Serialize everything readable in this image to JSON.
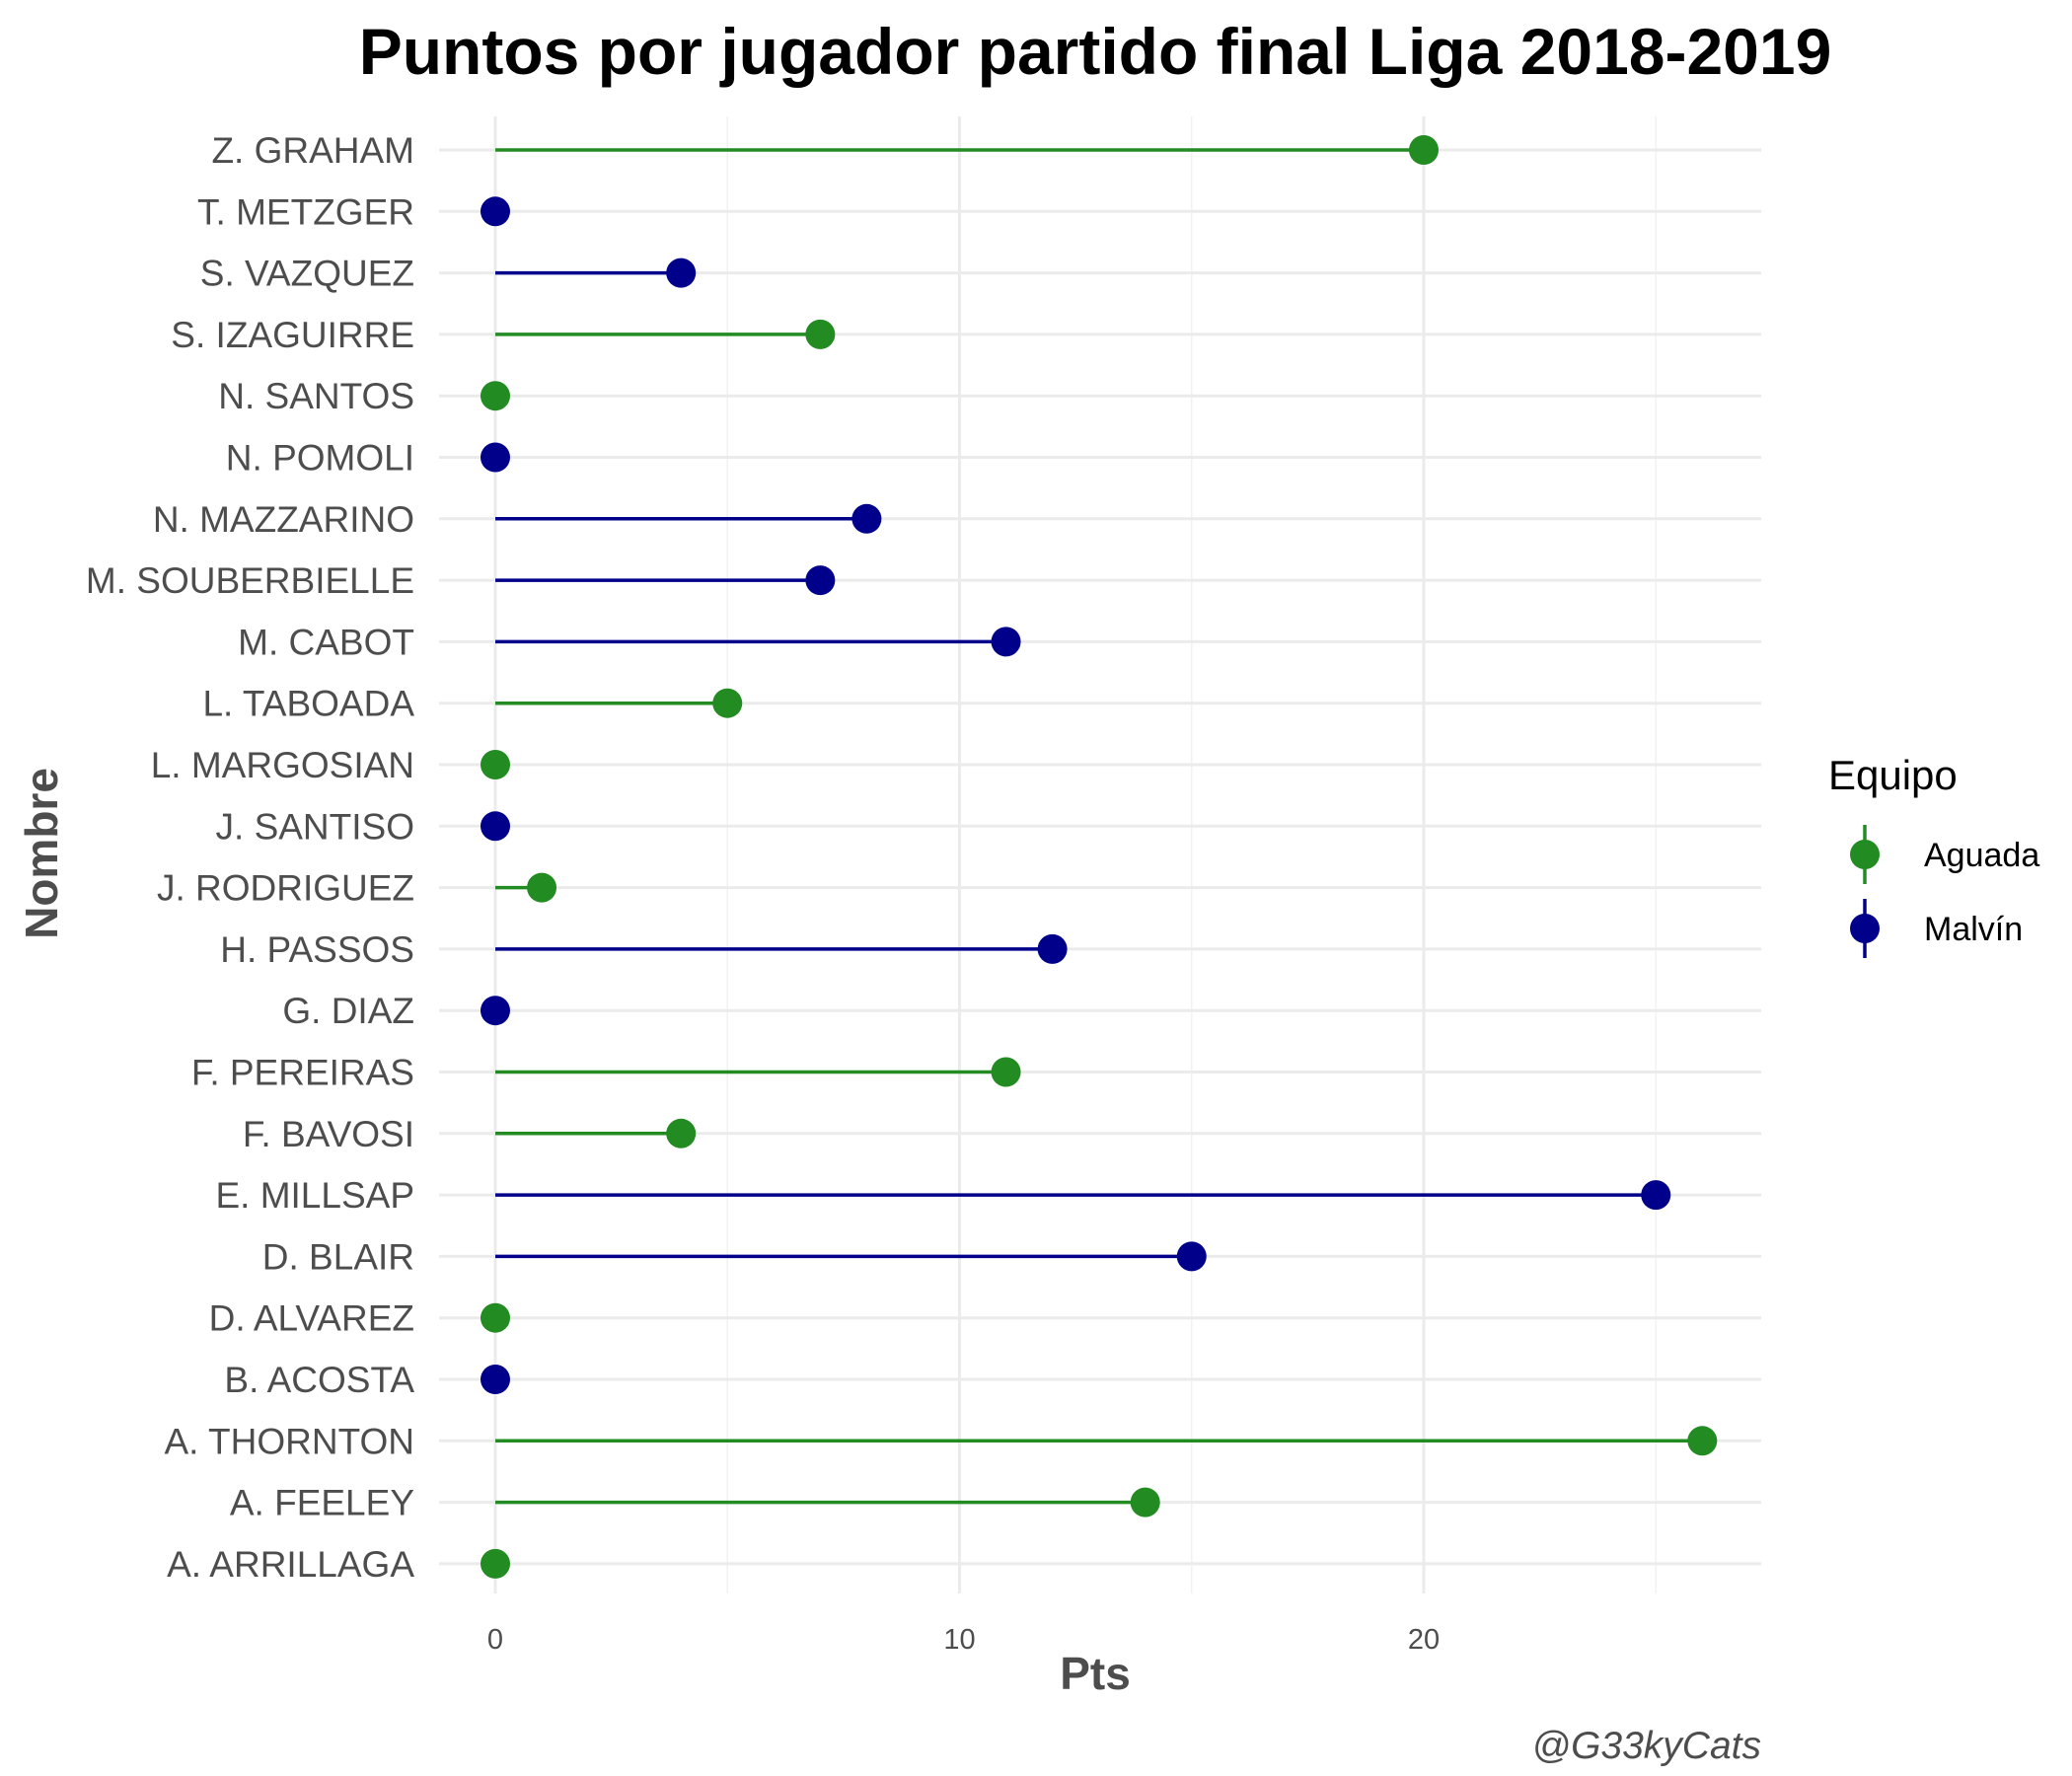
{
  "chart_data": {
    "type": "lollipop",
    "title": "Puntos por jugador partido final Liga 2018-2019",
    "xlabel": "Pts",
    "ylabel": "Nombre",
    "xlim": [
      -4.5,
      27.5
    ],
    "xticks": [
      0,
      10,
      20
    ],
    "grid": true,
    "caption": "@G33kyCats",
    "legend": {
      "title": "Equipo",
      "position": "right",
      "entries": [
        {
          "name": "Aguada",
          "color": "#228B22"
        },
        {
          "name": "Malvín",
          "color": "#00008B"
        }
      ]
    },
    "points": [
      {
        "name": "Z. GRAHAM",
        "team": "Aguada",
        "pts": 20
      },
      {
        "name": "T. METZGER",
        "team": "Malvín",
        "pts": 0
      },
      {
        "name": "S. VAZQUEZ",
        "team": "Malvín",
        "pts": 4
      },
      {
        "name": "S. IZAGUIRRE",
        "team": "Aguada",
        "pts": 7
      },
      {
        "name": "N. SANTOS",
        "team": "Aguada",
        "pts": 0
      },
      {
        "name": "N. POMOLI",
        "team": "Malvín",
        "pts": 0
      },
      {
        "name": "N. MAZZARINO",
        "team": "Malvín",
        "pts": 8
      },
      {
        "name": "M. SOUBERBIELLE",
        "team": "Malvín",
        "pts": 7
      },
      {
        "name": "M. CABOT",
        "team": "Malvín",
        "pts": 11
      },
      {
        "name": "L. TABOADA",
        "team": "Aguada",
        "pts": 5
      },
      {
        "name": "L. MARGOSIAN",
        "team": "Aguada",
        "pts": 0
      },
      {
        "name": "J. SANTISO",
        "team": "Malvín",
        "pts": 0
      },
      {
        "name": "J. RODRIGUEZ",
        "team": "Aguada",
        "pts": 1
      },
      {
        "name": "H. PASSOS",
        "team": "Malvín",
        "pts": 12
      },
      {
        "name": "G. DIAZ",
        "team": "Malvín",
        "pts": 0
      },
      {
        "name": "F. PEREIRAS",
        "team": "Aguada",
        "pts": 11
      },
      {
        "name": "F. BAVOSI",
        "team": "Aguada",
        "pts": 4
      },
      {
        "name": "E. MILLSAP",
        "team": "Malvín",
        "pts": 25
      },
      {
        "name": "D. BLAIR",
        "team": "Malvín",
        "pts": 15
      },
      {
        "name": "D. ALVAREZ",
        "team": "Aguada",
        "pts": 0
      },
      {
        "name": "B. ACOSTA",
        "team": "Malvín",
        "pts": 0
      },
      {
        "name": "A. THORNTON",
        "team": "Aguada",
        "pts": 26
      },
      {
        "name": "A. FEELEY",
        "team": "Aguada",
        "pts": 14
      },
      {
        "name": "A. ARRILLAGA",
        "team": "Aguada",
        "pts": 0
      }
    ]
  }
}
